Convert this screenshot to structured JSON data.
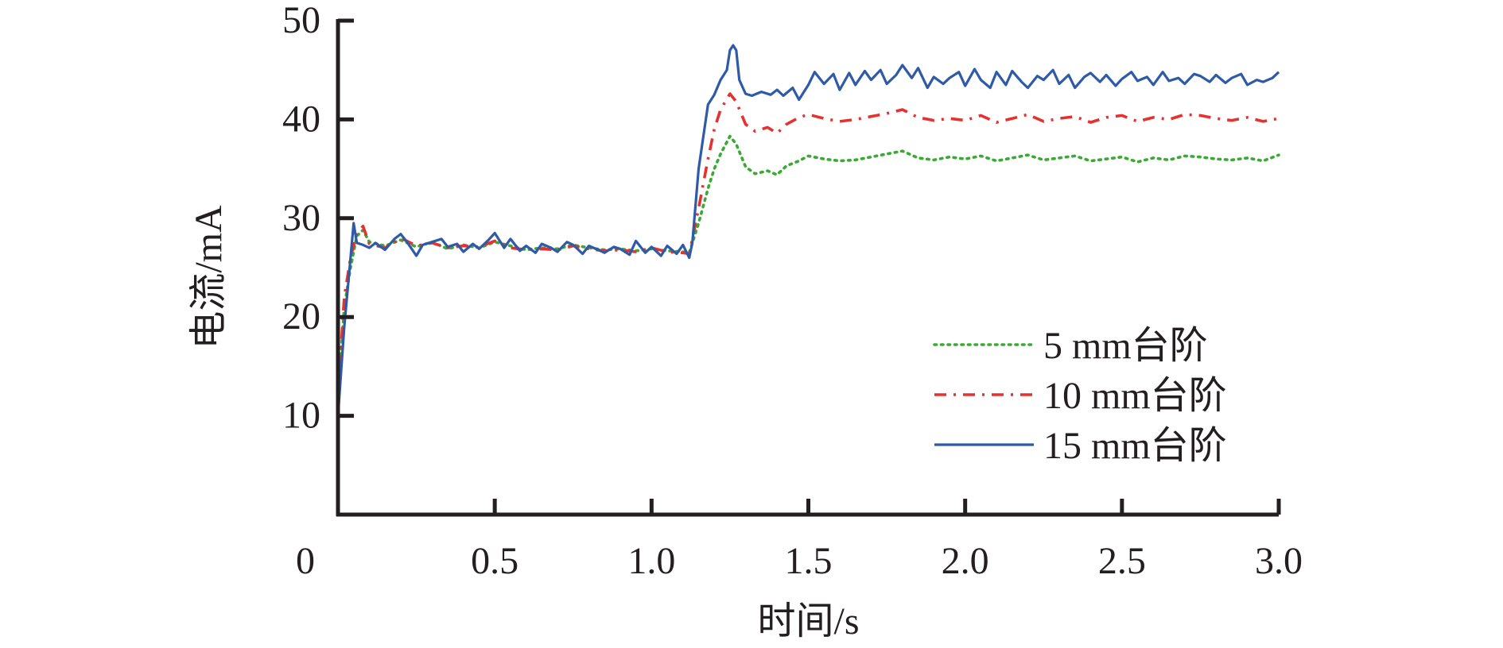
{
  "chart_data": {
    "type": "line",
    "title": "",
    "xlabel": "时间/s",
    "ylabel": "电流/mA",
    "xlim": [
      0,
      3.0
    ],
    "ylim": [
      0,
      50
    ],
    "x_ticks": [
      0.5,
      1.0,
      1.5,
      2.0,
      2.5,
      3.0
    ],
    "x_tick_labels": [
      "0.5",
      "1.0",
      "1.5",
      "2.0",
      "2.5",
      "3.0"
    ],
    "y_ticks": [
      10,
      20,
      30,
      40,
      50
    ],
    "y_tick_labels": [
      "10",
      "20",
      "30",
      "40",
      "50"
    ],
    "origin_label": "0",
    "legend_position": "lower-right",
    "grid": false,
    "series": [
      {
        "name": "5 mm台阶",
        "color": "#3aaa35",
        "dash": "dotted",
        "x": [
          0,
          0.02,
          0.04,
          0.06,
          0.08,
          0.1,
          0.15,
          0.2,
          0.25,
          0.3,
          0.35,
          0.4,
          0.45,
          0.5,
          0.55,
          0.6,
          0.65,
          0.7,
          0.75,
          0.8,
          0.85,
          0.9,
          0.95,
          1.0,
          1.05,
          1.1,
          1.12,
          1.15,
          1.18,
          1.2,
          1.22,
          1.25,
          1.27,
          1.3,
          1.33,
          1.37,
          1.4,
          1.43,
          1.47,
          1.5,
          1.55,
          1.6,
          1.65,
          1.7,
          1.75,
          1.8,
          1.85,
          1.9,
          1.95,
          2.0,
          2.05,
          2.1,
          2.15,
          2.2,
          2.25,
          2.3,
          2.35,
          2.4,
          2.45,
          2.5,
          2.55,
          2.6,
          2.65,
          2.7,
          2.75,
          2.8,
          2.85,
          2.9,
          2.95,
          3.0
        ],
        "y": [
          12,
          21,
          25,
          28.2,
          28.8,
          27.6,
          27.2,
          27.8,
          27.1,
          27.6,
          26.9,
          27.3,
          27.0,
          27.6,
          27.2,
          26.8,
          27.0,
          26.9,
          27.3,
          27.0,
          26.8,
          26.9,
          26.7,
          26.9,
          26.7,
          26.6,
          26.5,
          29.5,
          33,
          35,
          36.5,
          38.3,
          37.5,
          35.2,
          34.5,
          34.8,
          34.4,
          35.3,
          35.8,
          36.3,
          36.0,
          35.8,
          35.9,
          36.2,
          36.5,
          36.8,
          36.1,
          35.9,
          36.2,
          36.0,
          36.3,
          35.8,
          36.1,
          36.4,
          35.9,
          36.1,
          36.3,
          35.8,
          36.0,
          36.2,
          35.7,
          36.1,
          35.9,
          36.3,
          36.2,
          36.0,
          35.9,
          36.1,
          35.8,
          36.4
        ]
      },
      {
        "name": "10 mm台阶",
        "color": "#e5312f",
        "dash": "dashdot",
        "x": [
          0,
          0.02,
          0.04,
          0.06,
          0.08,
          0.1,
          0.15,
          0.2,
          0.25,
          0.3,
          0.35,
          0.4,
          0.45,
          0.5,
          0.55,
          0.6,
          0.65,
          0.7,
          0.75,
          0.8,
          0.85,
          0.9,
          0.95,
          1.0,
          1.05,
          1.1,
          1.12,
          1.15,
          1.18,
          1.2,
          1.22,
          1.25,
          1.27,
          1.3,
          1.33,
          1.37,
          1.4,
          1.43,
          1.47,
          1.5,
          1.55,
          1.6,
          1.65,
          1.7,
          1.75,
          1.8,
          1.85,
          1.9,
          1.95,
          2.0,
          2.05,
          2.1,
          2.15,
          2.2,
          2.25,
          2.3,
          2.35,
          2.4,
          2.45,
          2.5,
          2.55,
          2.6,
          2.65,
          2.7,
          2.75,
          2.8,
          2.85,
          2.9,
          2.95,
          3.0
        ],
        "y": [
          12,
          22,
          26,
          28.5,
          29.2,
          27.4,
          27.0,
          28.0,
          27.2,
          27.5,
          27.0,
          27.2,
          27.1,
          27.7,
          27.0,
          26.8,
          26.9,
          26.8,
          27.2,
          26.9,
          26.7,
          26.8,
          26.6,
          27.0,
          26.6,
          26.5,
          26.4,
          31,
          36,
          39,
          41,
          42.6,
          41.8,
          39.5,
          38.8,
          39.2,
          38.6,
          39.5,
          40.2,
          40.5,
          40.1,
          39.8,
          40.0,
          40.3,
          40.6,
          41.0,
          40.2,
          39.9,
          40.1,
          39.9,
          40.4,
          39.7,
          40.1,
          40.5,
          39.8,
          40.1,
          40.3,
          39.7,
          40.2,
          40.4,
          39.8,
          40.2,
          40.0,
          40.5,
          40.4,
          40.1,
          39.9,
          40.2,
          39.8,
          40.1
        ]
      },
      {
        "name": "15 mm台阶",
        "color": "#2f5aa8",
        "dash": "solid",
        "x": [
          0,
          0.02,
          0.04,
          0.05,
          0.06,
          0.08,
          0.1,
          0.12,
          0.15,
          0.18,
          0.2,
          0.22,
          0.25,
          0.27,
          0.3,
          0.33,
          0.35,
          0.38,
          0.4,
          0.43,
          0.45,
          0.48,
          0.5,
          0.53,
          0.55,
          0.58,
          0.6,
          0.63,
          0.65,
          0.68,
          0.7,
          0.73,
          0.75,
          0.78,
          0.8,
          0.83,
          0.85,
          0.88,
          0.9,
          0.93,
          0.95,
          0.98,
          1.0,
          1.03,
          1.05,
          1.08,
          1.1,
          1.12,
          1.13,
          1.15,
          1.18,
          1.2,
          1.22,
          1.24,
          1.25,
          1.26,
          1.27,
          1.28,
          1.3,
          1.32,
          1.35,
          1.38,
          1.4,
          1.42,
          1.45,
          1.47,
          1.5,
          1.52,
          1.55,
          1.58,
          1.6,
          1.63,
          1.65,
          1.68,
          1.7,
          1.73,
          1.75,
          1.78,
          1.8,
          1.83,
          1.85,
          1.88,
          1.9,
          1.93,
          1.95,
          1.98,
          2.0,
          2.03,
          2.05,
          2.08,
          2.1,
          2.13,
          2.15,
          2.18,
          2.2,
          2.23,
          2.25,
          2.28,
          2.3,
          2.33,
          2.35,
          2.38,
          2.4,
          2.43,
          2.45,
          2.48,
          2.5,
          2.53,
          2.55,
          2.58,
          2.6,
          2.63,
          2.65,
          2.68,
          2.7,
          2.73,
          2.75,
          2.78,
          2.8,
          2.83,
          2.85,
          2.88,
          2.9,
          2.93,
          2.95,
          2.98,
          3.0
        ],
        "y": [
          10,
          19,
          26,
          29.5,
          27.5,
          27.3,
          27.0,
          27.5,
          26.8,
          27.9,
          28.4,
          27.6,
          26.2,
          27.3,
          27.6,
          27.9,
          27.1,
          27.4,
          26.6,
          27.4,
          26.9,
          27.8,
          28.5,
          27.0,
          27.9,
          26.7,
          27.2,
          26.5,
          27.4,
          27.0,
          26.6,
          27.6,
          27.3,
          26.4,
          27.2,
          26.8,
          26.5,
          27.1,
          26.9,
          26.3,
          27.7,
          26.5,
          27.1,
          26.2,
          27.2,
          26.4,
          27.3,
          26.0,
          27.5,
          35,
          41.5,
          42.5,
          44.0,
          45.0,
          47.0,
          47.5,
          47.0,
          44.0,
          42.6,
          42.4,
          42.8,
          42.5,
          43.0,
          42.4,
          43.2,
          42.0,
          43.5,
          44.8,
          43.6,
          44.6,
          43.0,
          44.7,
          43.5,
          44.9,
          44.0,
          45.0,
          43.6,
          44.5,
          45.5,
          44.2,
          45.2,
          43.2,
          44.3,
          43.6,
          44.2,
          44.8,
          43.4,
          45.1,
          44.0,
          43.2,
          44.8,
          43.5,
          44.9,
          43.8,
          43.2,
          44.4,
          44.0,
          45.0,
          43.6,
          44.5,
          43.2,
          44.3,
          44.7,
          43.8,
          44.5,
          43.4,
          44.1,
          44.8,
          43.9,
          44.3,
          43.5,
          44.8,
          43.9,
          44.2,
          43.6,
          44.6,
          44.4,
          43.8,
          44.5,
          43.7,
          44.2,
          44.6,
          43.5,
          44.0,
          43.8,
          44.2,
          44.8
        ]
      }
    ]
  }
}
